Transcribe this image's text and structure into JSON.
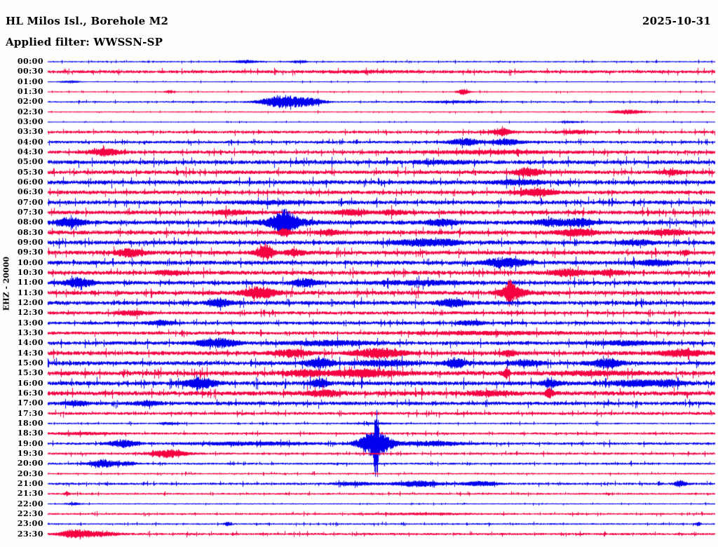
{
  "header": {
    "station_title": "HL Milos Isl., Borehole M2",
    "date": "2025-10-31",
    "filter_label": "Applied filter: WWSSN-SP"
  },
  "y_axis_label": "EHZ - 20000",
  "chart_data": {
    "type": "helicorder-seismogram",
    "title": "HL Milos Isl., Borehole M2",
    "channel": "EHZ",
    "gain_label": "20000",
    "filter": "WWSSN-SP",
    "date": "2025-10-31",
    "row_interval_minutes": 30,
    "rows_count": 48,
    "legend_position": "none",
    "grid": false,
    "colors": {
      "even_trace_blue": "#0000ee",
      "odd_trace_red": "#f50041",
      "text": "#000000",
      "background": "#fefefe"
    },
    "event_format": "[center_x_px, envelope_width_px, amplitude_px]",
    "rows": [
      {
        "t": "00:00",
        "c": "blue",
        "noise": 0.7,
        "events": [
          [
            350,
            12,
            2
          ],
          [
            425,
            8,
            1.5
          ]
        ]
      },
      {
        "t": "00:30",
        "c": "red",
        "noise": 1.5,
        "events": [
          [
            520,
            40,
            0.8
          ]
        ]
      },
      {
        "t": "01:00",
        "c": "blue",
        "noise": 0.5,
        "events": [
          [
            100,
            10,
            1.5
          ]
        ]
      },
      {
        "t": "01:30",
        "c": "red",
        "noise": 0.6,
        "events": [
          [
            240,
            4,
            2
          ],
          [
            660,
            6,
            4
          ]
        ]
      },
      {
        "t": "02:00",
        "c": "blue",
        "noise": 0.8,
        "events": [
          [
            405,
            22,
            9
          ],
          [
            445,
            12,
            4
          ],
          [
            650,
            30,
            1.2
          ]
        ]
      },
      {
        "t": "02:30",
        "c": "red",
        "noise": 0.6,
        "events": [
          [
            895,
            15,
            3
          ]
        ]
      },
      {
        "t": "03:00",
        "c": "blue",
        "noise": 0.5,
        "events": [
          [
            812,
            10,
            1.2
          ]
        ]
      },
      {
        "t": "03:30",
        "c": "red",
        "noise": 1.3,
        "events": [
          [
            715,
            10,
            5
          ],
          [
            820,
            15,
            2
          ]
        ]
      },
      {
        "t": "04:00",
        "c": "blue",
        "noise": 1.3,
        "events": [
          [
            663,
            15,
            4.5
          ],
          [
            722,
            15,
            4
          ]
        ]
      },
      {
        "t": "04:30",
        "c": "red",
        "noise": 1.6,
        "events": [
          [
            150,
            14,
            5
          ],
          [
            700,
            60,
            1.5
          ]
        ]
      },
      {
        "t": "05:00",
        "c": "blue",
        "noise": 2.0,
        "events": [
          [
            630,
            25,
            1.5
          ]
        ]
      },
      {
        "t": "05:30",
        "c": "red",
        "noise": 1.8,
        "events": [
          [
            753,
            14,
            5.5
          ],
          [
            958,
            12,
            2.5
          ]
        ]
      },
      {
        "t": "06:00",
        "c": "blue",
        "noise": 2.0,
        "events": [
          [
            740,
            20,
            3
          ]
        ]
      },
      {
        "t": "06:30",
        "c": "red",
        "noise": 1.8,
        "events": [
          [
            765,
            18,
            5
          ]
        ]
      },
      {
        "t": "07:00",
        "c": "blue",
        "noise": 1.9,
        "events": [
          [
            390,
            30,
            1.5
          ]
        ]
      },
      {
        "t": "07:30",
        "c": "red",
        "noise": 1.9,
        "events": [
          [
            330,
            15,
            3
          ],
          [
            500,
            15,
            3.5
          ],
          [
            560,
            12,
            3
          ]
        ]
      },
      {
        "t": "08:00",
        "c": "blue",
        "noise": 2.0,
        "events": [
          [
            100,
            14,
            6
          ],
          [
            405,
            10,
            13
          ],
          [
            405,
            25,
            6
          ],
          [
            630,
            15,
            4
          ],
          [
            790,
            20,
            4.5
          ],
          [
            830,
            12,
            4
          ]
        ]
      },
      {
        "t": "08:30",
        "c": "red",
        "noise": 2.0,
        "events": [
          [
            405,
            6,
            5
          ],
          [
            470,
            10,
            3
          ],
          [
            823,
            18,
            4.5
          ],
          [
            950,
            20,
            3
          ]
        ]
      },
      {
        "t": "09:00",
        "c": "blue",
        "noise": 2.0,
        "events": [
          [
            600,
            25,
            4
          ],
          [
            640,
            10,
            3
          ],
          [
            910,
            15,
            3
          ]
        ]
      },
      {
        "t": "09:30",
        "c": "red",
        "noise": 2.0,
        "events": [
          [
            185,
            14,
            5
          ],
          [
            378,
            8,
            11
          ],
          [
            420,
            10,
            4
          ],
          [
            977,
            3,
            4
          ]
        ]
      },
      {
        "t": "10:00",
        "c": "blue",
        "noise": 2.0,
        "events": [
          [
            720,
            20,
            6.5
          ],
          [
            935,
            18,
            3.5
          ]
        ]
      },
      {
        "t": "10:30",
        "c": "red",
        "noise": 2.0,
        "events": [
          [
            240,
            12,
            3
          ],
          [
            810,
            18,
            4
          ],
          [
            870,
            15,
            3
          ]
        ]
      },
      {
        "t": "11:00",
        "c": "blue",
        "noise": 2.0,
        "events": [
          [
            112,
            14,
            6
          ],
          [
            435,
            12,
            5.5
          ],
          [
            600,
            40,
            2
          ]
        ]
      },
      {
        "t": "11:30",
        "c": "red",
        "noise": 2.0,
        "events": [
          [
            370,
            16,
            8
          ],
          [
            726,
            3,
            16
          ],
          [
            730,
            14,
            8
          ]
        ]
      },
      {
        "t": "12:00",
        "c": "blue",
        "noise": 2.0,
        "events": [
          [
            313,
            12,
            5
          ],
          [
            645,
            14,
            5
          ]
        ]
      },
      {
        "t": "12:30",
        "c": "red",
        "noise": 1.6,
        "events": [
          [
            188,
            14,
            3
          ]
        ]
      },
      {
        "t": "13:00",
        "c": "blue",
        "noise": 1.6,
        "events": [
          [
            230,
            12,
            3
          ],
          [
            670,
            12,
            3
          ]
        ]
      },
      {
        "t": "13:30",
        "c": "red",
        "noise": 1.6,
        "events": [
          [
            700,
            80,
            1.5
          ]
        ]
      },
      {
        "t": "14:00",
        "c": "blue",
        "noise": 1.8,
        "events": [
          [
            310,
            20,
            6
          ],
          [
            470,
            40,
            3
          ],
          [
            890,
            30,
            2.5
          ]
        ]
      },
      {
        "t": "14:30",
        "c": "red",
        "noise": 2.0,
        "events": [
          [
            415,
            18,
            4.5
          ],
          [
            540,
            22,
            6.5
          ],
          [
            725,
            8,
            4
          ],
          [
            970,
            20,
            4.5
          ]
        ]
      },
      {
        "t": "15:00",
        "c": "blue",
        "noise": 2.0,
        "events": [
          [
            455,
            14,
            6.5
          ],
          [
            545,
            30,
            3.5
          ],
          [
            650,
            10,
            6
          ],
          [
            750,
            15,
            3.5
          ],
          [
            865,
            15,
            6
          ]
        ]
      },
      {
        "t": "15:30",
        "c": "red",
        "noise": 2.2,
        "events": [
          [
            435,
            20,
            3.5
          ],
          [
            520,
            35,
            4.5
          ],
          [
            722,
            3,
            7
          ],
          [
            850,
            40,
            2
          ]
        ]
      },
      {
        "t": "16:00",
        "c": "blue",
        "noise": 2.1,
        "events": [
          [
            285,
            16,
            7
          ],
          [
            455,
            8,
            6
          ],
          [
            785,
            10,
            4
          ],
          [
            905,
            25,
            4
          ],
          [
            955,
            15,
            3.5
          ]
        ]
      },
      {
        "t": "16:30",
        "c": "red",
        "noise": 2.2,
        "events": [
          [
            460,
            15,
            4
          ],
          [
            700,
            20,
            3
          ],
          [
            783,
            4,
            6
          ]
        ]
      },
      {
        "t": "17:00",
        "c": "blue",
        "noise": 1.8,
        "events": [
          [
            110,
            12,
            3
          ],
          [
            210,
            12,
            3
          ]
        ]
      },
      {
        "t": "17:30",
        "c": "red",
        "noise": 1.4,
        "events": []
      },
      {
        "t": "18:00",
        "c": "blue",
        "noise": 0.8,
        "events": [
          [
            240,
            10,
            1.5
          ],
          [
            530,
            20,
            1
          ]
        ]
      },
      {
        "t": "18:30",
        "c": "red",
        "noise": 1.1,
        "events": [
          [
            120,
            30,
            1.3
          ]
        ]
      },
      {
        "t": "19:00",
        "c": "blue",
        "noise": 1.2,
        "events": [
          [
            175,
            14,
            5
          ],
          [
            360,
            60,
            2
          ],
          [
            535,
            16,
            19
          ],
          [
            536,
            2,
            45
          ],
          [
            620,
            30,
            3
          ]
        ]
      },
      {
        "t": "19:30",
        "c": "red",
        "noise": 1.1,
        "events": [
          [
            240,
            18,
            5.5
          ]
        ]
      },
      {
        "t": "20:00",
        "c": "blue",
        "noise": 1.0,
        "events": [
          [
            147,
            13,
            5.5
          ],
          [
            182,
            8,
            2.5
          ]
        ]
      },
      {
        "t": "20:30",
        "c": "red",
        "noise": 0.8,
        "events": []
      },
      {
        "t": "21:00",
        "c": "blue",
        "noise": 1.1,
        "events": [
          [
            505,
            20,
            2
          ],
          [
            595,
            22,
            4
          ],
          [
            685,
            18,
            3
          ],
          [
            970,
            6,
            4
          ]
        ]
      },
      {
        "t": "21:30",
        "c": "red",
        "noise": 0.9,
        "events": [
          [
            95,
            3,
            2
          ]
        ]
      },
      {
        "t": "22:00",
        "c": "blue",
        "noise": 0.6,
        "events": [
          [
            105,
            8,
            1.5
          ]
        ]
      },
      {
        "t": "22:30",
        "c": "red",
        "noise": 0.9,
        "events": [
          [
            600,
            50,
            1
          ]
        ]
      },
      {
        "t": "23:00",
        "c": "blue",
        "noise": 0.8,
        "events": [
          [
            325,
            4,
            2.5
          ],
          [
            995,
            3,
            2.5
          ]
        ]
      },
      {
        "t": "23:30",
        "c": "red",
        "noise": 1.1,
        "events": [
          [
            105,
            14,
            5.5
          ],
          [
            140,
            20,
            3
          ]
        ]
      }
    ]
  }
}
